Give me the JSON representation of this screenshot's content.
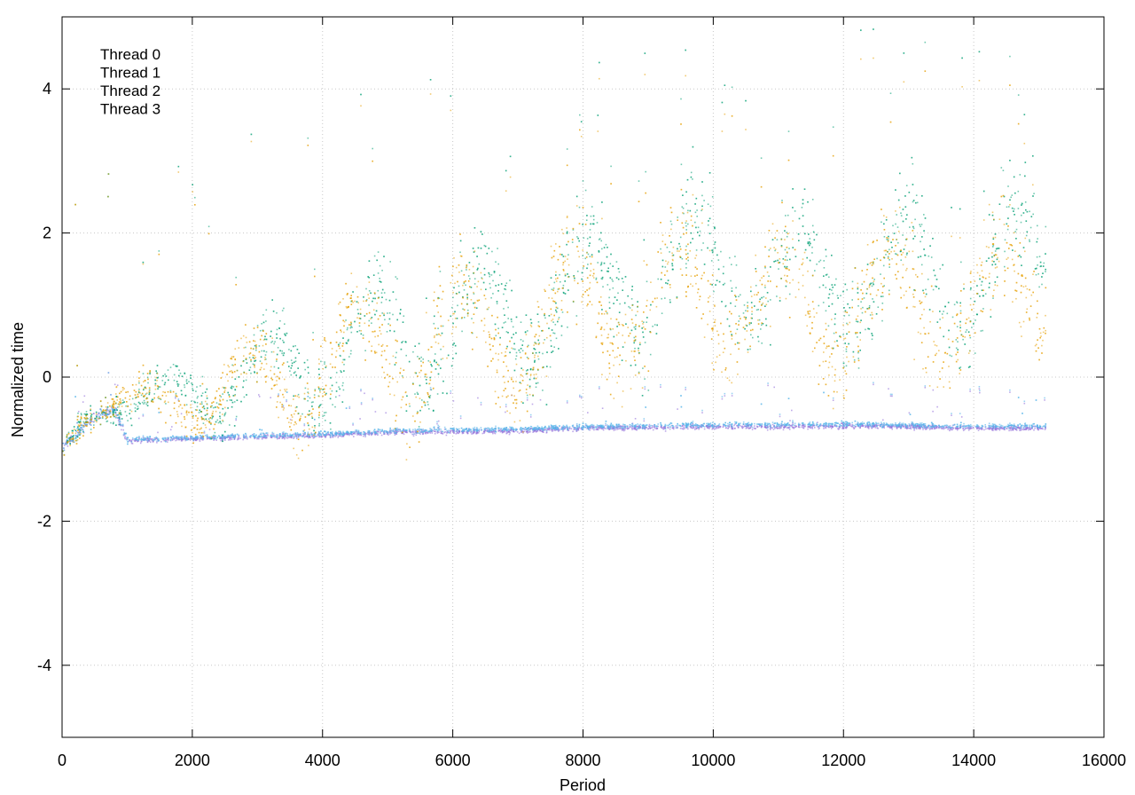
{
  "chart_data": {
    "type": "scatter",
    "title": "",
    "xlabel": "Period",
    "ylabel": "Normalized time",
    "xlim": [
      0,
      16000
    ],
    "ylim": [
      -5,
      5
    ],
    "xticks": [
      0,
      2000,
      4000,
      6000,
      8000,
      10000,
      12000,
      14000,
      16000
    ],
    "yticks": [
      -4,
      -2,
      0,
      2,
      4
    ],
    "grid": true,
    "legend_position": "top-left",
    "series": [
      {
        "name": "Thread 0",
        "color": "#9370DB",
        "component": "low-band",
        "x": [
          0,
          200,
          400,
          600,
          800,
          1000,
          1200,
          2000,
          3000,
          4000,
          5000,
          6000,
          7000,
          8000,
          9000,
          10000,
          11000,
          12000,
          13000,
          14000,
          15100
        ],
        "y": [
          -0.95,
          -0.8,
          -0.6,
          -0.5,
          -0.45,
          -0.88,
          -0.87,
          -0.85,
          -0.82,
          -0.8,
          -0.76,
          -0.75,
          -0.74,
          -0.7,
          -0.69,
          -0.68,
          -0.68,
          -0.67,
          -0.68,
          -0.7,
          -0.7
        ]
      },
      {
        "name": "Thread 1",
        "color": "#56B4E9",
        "component": "low-band",
        "x": [
          0,
          200,
          400,
          600,
          800,
          1000,
          1200,
          2000,
          3000,
          4000,
          5000,
          6000,
          7000,
          8000,
          9000,
          10000,
          11000,
          12000,
          13000,
          14000,
          15100
        ],
        "y": [
          -0.95,
          -0.8,
          -0.6,
          -0.5,
          -0.45,
          -0.86,
          -0.85,
          -0.83,
          -0.8,
          -0.78,
          -0.74,
          -0.72,
          -0.71,
          -0.68,
          -0.66,
          -0.65,
          -0.65,
          -0.64,
          -0.66,
          -0.67,
          -0.67
        ]
      },
      {
        "name": "Thread 2",
        "color": "#009E73",
        "component": "high-band",
        "x": [
          0,
          200,
          400,
          600,
          800,
          1000,
          1500,
          2000,
          2500,
          3000,
          3500,
          4000,
          5000,
          6000,
          7000,
          8000,
          9000,
          10000,
          11000,
          12000,
          13000,
          14000,
          15100
        ],
        "y": [
          -0.95,
          -0.75,
          -0.5,
          -0.4,
          -0.3,
          -0.4,
          -0.35,
          -0.1,
          0.0,
          -0.1,
          0.1,
          0.4,
          0.5,
          0.8,
          0.9,
          1.1,
          1.4,
          1.6,
          1.3,
          1.4,
          1.5,
          1.3,
          1.8
        ]
      },
      {
        "name": "Thread 3",
        "color": "#E69F00",
        "component": "high-band",
        "x": [
          0,
          200,
          400,
          600,
          800,
          1000,
          1500,
          2000,
          2500,
          3000,
          3500,
          4000,
          5000,
          6000,
          7000,
          8000,
          9000,
          10000,
          11000,
          12000,
          13000,
          14000,
          15100
        ],
        "y": [
          -0.95,
          -0.75,
          -0.5,
          -0.4,
          -0.3,
          -0.4,
          -0.4,
          -0.2,
          -0.1,
          -0.2,
          0.0,
          0.3,
          0.3,
          0.6,
          0.6,
          0.9,
          1.1,
          1.2,
          0.9,
          1.0,
          1.1,
          0.9,
          1.4
        ]
      }
    ]
  }
}
